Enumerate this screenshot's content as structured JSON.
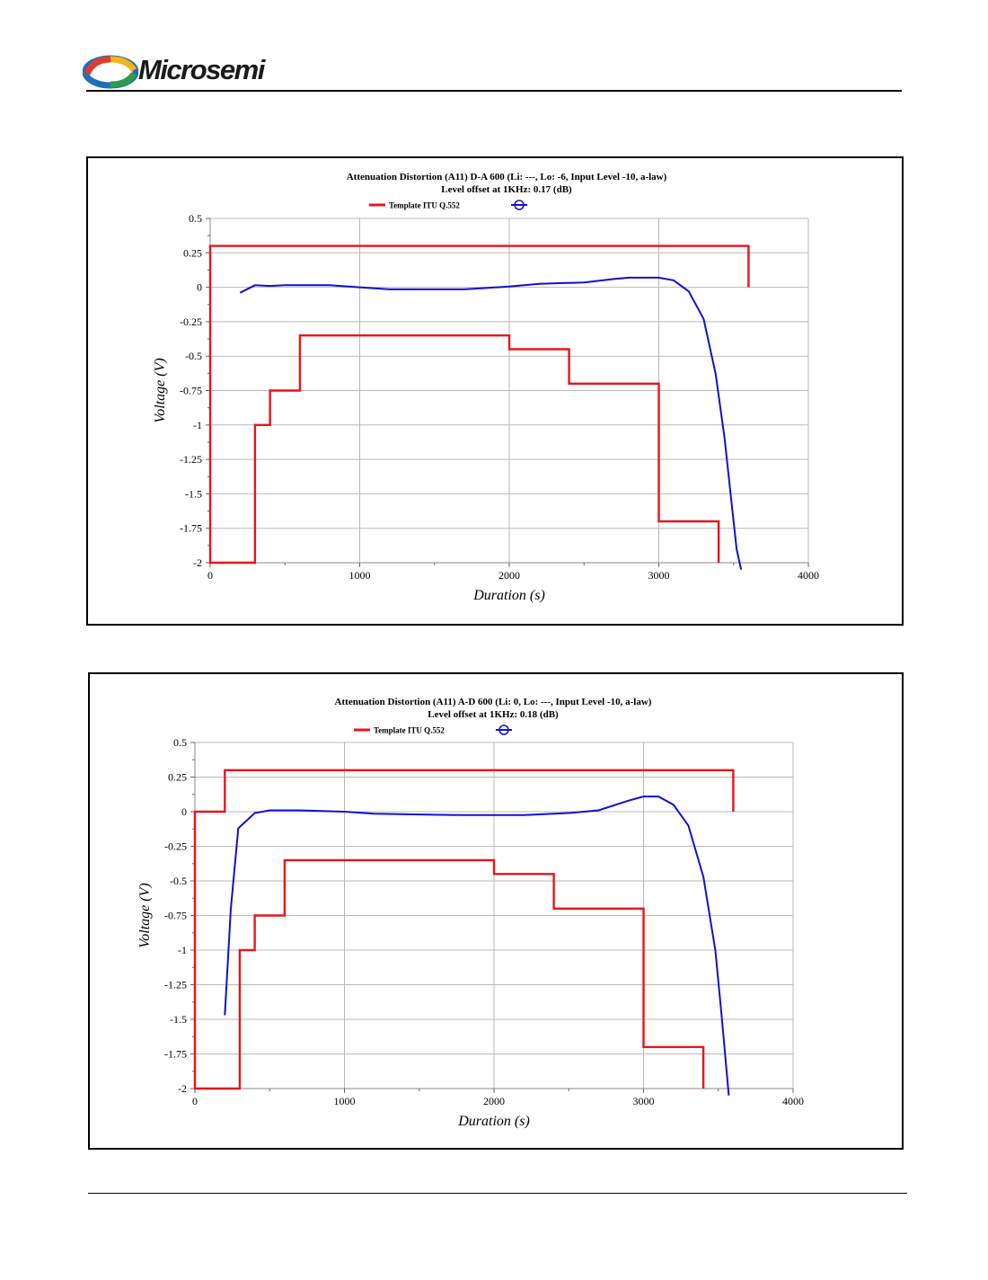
{
  "header": {
    "brand": "Microsemi"
  },
  "chart_data": [
    {
      "type": "line",
      "title": "Attenuation Distortion (A11) D-A 600 (Li: ---, Lo: -6, Input Level -10, a-law)",
      "subtitle": "Level offset at 1KHz: 0.17 (dB)",
      "xlabel": "Duration (s)",
      "ylabel": "Voltage (V)",
      "xlim": [
        0,
        4000
      ],
      "ylim": [
        -2,
        0.5
      ],
      "xticks": [
        "0",
        "1000",
        "2000",
        "3000",
        "4000"
      ],
      "yticks": [
        "0.5",
        "0.25",
        "0",
        "-0.25",
        "-0.5",
        "-0.75",
        "-1",
        "-1.25",
        "-1.5",
        "-1.75",
        "-2"
      ],
      "grid": true,
      "legend": "top",
      "series": [
        {
          "name": "Template ITU Q.552",
          "color": "#e8141c",
          "x": [
            3600,
            3600,
            0,
            0,
            300,
            300,
            400,
            400,
            600,
            600,
            2000,
            2000,
            2400,
            2400,
            3000,
            3000,
            3400,
            3400
          ],
          "y": [
            0,
            0.3,
            0.3,
            -2,
            -2,
            -1,
            -1,
            -0.75,
            -0.75,
            -0.35,
            -0.35,
            -0.45,
            -0.45,
            -0.7,
            -0.7,
            -1.7,
            -1.7,
            -2
          ]
        },
        {
          "name": "",
          "color": "#1010d0",
          "x": [
            200,
            300,
            400,
            500,
            800,
            1000,
            1200,
            1500,
            1700,
            2000,
            2200,
            2500,
            2700,
            2800,
            3000,
            3100,
            3200,
            3300,
            3380,
            3440,
            3480,
            3520,
            3550
          ],
          "y": [
            -0.04,
            0.015,
            0.01,
            0.015,
            0.015,
            0,
            -0.015,
            -0.015,
            -0.015,
            0.005,
            0.025,
            0.035,
            0.06,
            0.07,
            0.07,
            0.05,
            -0.03,
            -0.23,
            -0.63,
            -1.1,
            -1.5,
            -1.9,
            -2.05
          ]
        }
      ]
    },
    {
      "type": "line",
      "title": "Attenuation Distortion (A11) A-D 600 (Li: 0, Lo: ---, Input Level -10, a-law)",
      "subtitle": "Level offset at 1KHz: 0.18 (dB)",
      "xlabel": "Duration (s)",
      "ylabel": "Voltage (V)",
      "xlim": [
        0,
        4000
      ],
      "ylim": [
        -2,
        0.5
      ],
      "xticks": [
        "0",
        "1000",
        "2000",
        "3000",
        "4000"
      ],
      "yticks": [
        "0.5",
        "0.25",
        "0",
        "-0.25",
        "-0.5",
        "-0.75",
        "-1",
        "-1.25",
        "-1.5",
        "-1.75",
        "-2"
      ],
      "grid": true,
      "legend": "top",
      "series": [
        {
          "name": "Template ITU Q.552",
          "color": "#e8141c",
          "x": [
            3600,
            3600,
            200,
            200,
            0,
            0,
            300,
            300,
            400,
            400,
            600,
            600,
            2000,
            2000,
            2400,
            2400,
            3000,
            3000,
            3400,
            3400
          ],
          "y": [
            0,
            0.3,
            0.3,
            0,
            0,
            -2,
            -2,
            -1,
            -1,
            -0.75,
            -0.75,
            -0.35,
            -0.35,
            -0.45,
            -0.45,
            -0.7,
            -0.7,
            -1.7,
            -1.7,
            -2
          ]
        },
        {
          "name": "",
          "color": "#1010d0",
          "x": [
            200,
            240,
            290,
            400,
            500,
            700,
            1000,
            1200,
            1500,
            1800,
            2100,
            2200,
            2500,
            2700,
            2900,
            3000,
            3100,
            3200,
            3300,
            3400,
            3480,
            3520,
            3570
          ],
          "y": [
            -1.47,
            -0.7,
            -0.12,
            -0.01,
            0.01,
            0.01,
            0,
            -0.015,
            -0.02,
            -0.025,
            -0.025,
            -0.025,
            -0.01,
            0.01,
            0.08,
            0.11,
            0.11,
            0.05,
            -0.1,
            -0.47,
            -1.0,
            -1.45,
            -2.05
          ]
        }
      ]
    }
  ]
}
